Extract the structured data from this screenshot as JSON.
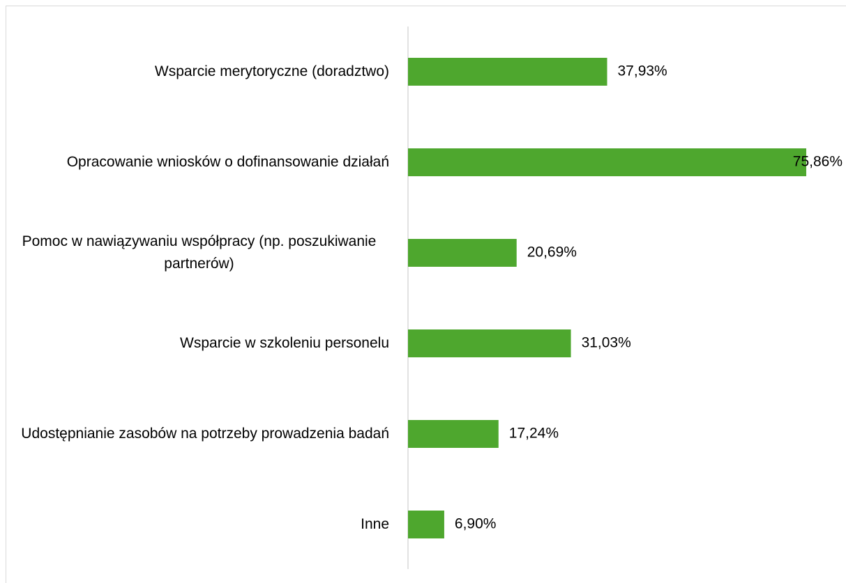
{
  "chart_data": {
    "type": "bar",
    "orientation": "horizontal",
    "categories": [
      "Wsparcie merytoryczne (doradztwo)",
      "Opracowanie wniosków o dofinansowanie działań",
      "Pomoc w nawiązywaniu współpracy (np. poszukiwanie partnerów)",
      "Wsparcie w szkoleniu personelu",
      "Udostępnianie zasobów na potrzeby prowadzenia badań",
      "Inne"
    ],
    "values": [
      37.93,
      75.86,
      20.69,
      31.03,
      17.24,
      6.9
    ],
    "value_labels": [
      "37,93%",
      "75,86%",
      "20,69%",
      "31,03%",
      "17,24%",
      "6,90%"
    ],
    "color": "#4ea72e"
  }
}
